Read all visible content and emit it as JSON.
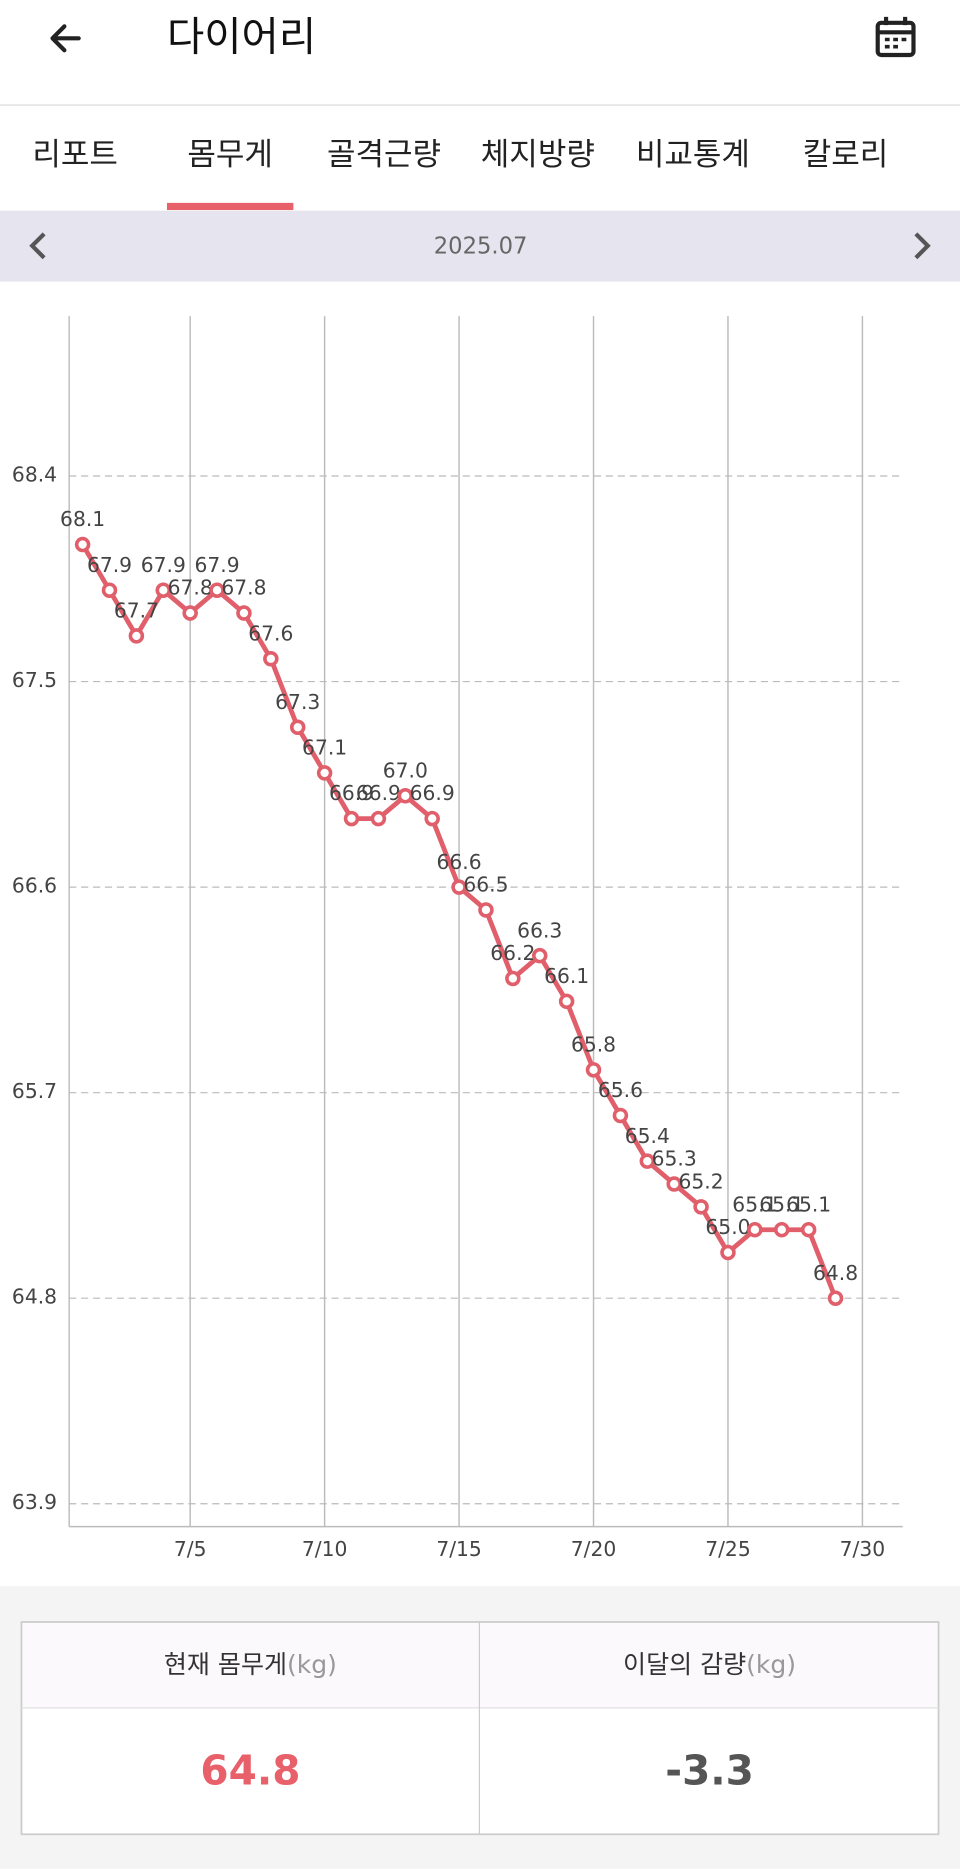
{
  "header": {
    "title": "다이어리"
  },
  "tabs": {
    "items": [
      "리포트",
      "몸무게",
      "골격근량",
      "체지방량",
      "비교통계",
      "칼로리"
    ],
    "active": 1
  },
  "month": "2025.07",
  "chart_data": {
    "type": "line",
    "x": [
      1,
      2,
      3,
      4,
      5,
      6,
      7,
      8,
      9,
      10,
      11,
      12,
      13,
      14,
      15,
      16,
      17,
      18,
      19,
      20,
      21,
      22,
      23,
      24,
      25,
      26,
      27,
      28,
      29
    ],
    "series": [
      {
        "name": "몸무게",
        "color": "#e05f6b",
        "values": [
          68.1,
          67.9,
          67.7,
          67.9,
          67.8,
          67.9,
          67.8,
          67.6,
          67.3,
          67.1,
          66.9,
          66.9,
          67.0,
          66.9,
          66.6,
          66.5,
          66.2,
          66.3,
          66.1,
          65.8,
          65.6,
          65.4,
          65.3,
          65.2,
          65.0,
          65.1,
          65.1,
          65.1,
          64.8
        ],
        "value_labels": [
          "68.1",
          "67.9",
          "67.7",
          "67.9",
          "67.8",
          "67.9",
          "67.8",
          "67.6",
          "67.3",
          "67.1",
          "66.9",
          "66.9",
          "67.0",
          "66.9",
          "66.6",
          "66.5",
          "66.2",
          "66.3",
          "66.1",
          "65.8",
          "65.6",
          "65.4",
          "65.3",
          "65.2",
          "65.0",
          "65.1",
          "65.1",
          "65.1",
          "64.8"
        ]
      }
    ],
    "xlim": [
      0.5,
      31.5
    ],
    "xticks": [
      {
        "value": 5,
        "label": "7/5"
      },
      {
        "value": 10,
        "label": "7/10"
      },
      {
        "value": 15,
        "label": "7/15"
      },
      {
        "value": 20,
        "label": "7/20"
      },
      {
        "value": 25,
        "label": "7/25"
      },
      {
        "value": 30,
        "label": "7/30"
      }
    ],
    "ylim": [
      63.8,
      69.1
    ],
    "yticks": [
      63.9,
      64.8,
      65.7,
      66.6,
      67.5,
      68.4
    ],
    "grid": true
  },
  "summary": {
    "headers": [
      {
        "label": "현재 몸무게",
        "unit": "(kg)"
      },
      {
        "label": "이달의 감량",
        "unit": "(kg)"
      }
    ],
    "values": [
      64.8,
      -3.3
    ]
  }
}
